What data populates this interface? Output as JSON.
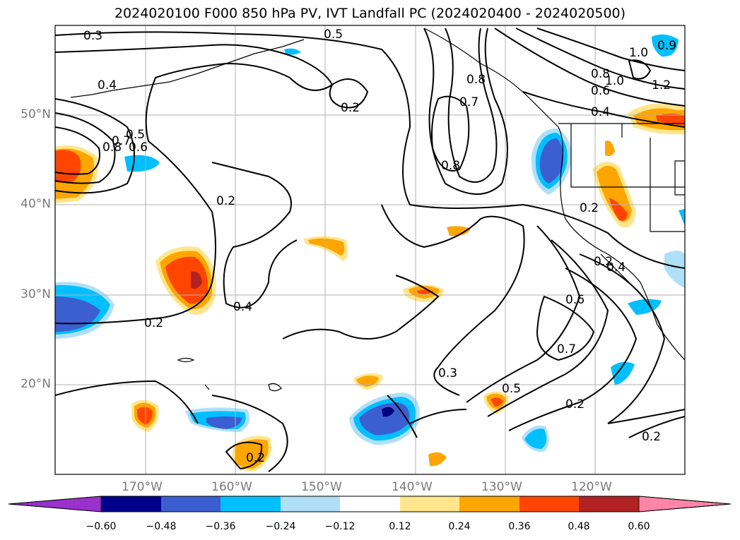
{
  "title": "2024020100 F000 850 hPa PV, IVT Landfall PC (2024020400 - 2024020500)",
  "map": {
    "lat_labels": [
      "50°N",
      "40°N",
      "30°N",
      "20°N"
    ],
    "lon_labels": [
      "170°W",
      "160°W",
      "150°W",
      "140°W",
      "130°W",
      "120°W"
    ],
    "contour_labels": [
      "0.3",
      "0.5",
      "0.4",
      "0.2",
      "0.8",
      "0.7",
      "0.8",
      "1.0",
      "0.9",
      "1.2",
      "1.0",
      "0.8",
      "0.6",
      "0.4",
      "0.8",
      "0.7",
      "0.5",
      "0.6",
      "0.2",
      "0.2",
      "0.2",
      "0.4",
      "0.2",
      "0.4",
      "0.6",
      "0.7",
      "0.3",
      "0.5",
      "0.2",
      "0.2",
      "0.2"
    ],
    "colors": {
      "dark_red": "#b22222",
      "red_orange": "#ff4500",
      "orange": "#ffa500",
      "yellow": "#ffe68c",
      "light_blue": "#b0e0f8",
      "deep_sky": "#00bfff",
      "royal_blue": "#3b5fd0",
      "navy": "#000080"
    }
  },
  "colorbar": {
    "ticks": [
      "−0.60",
      "−0.48",
      "−0.36",
      "−0.24",
      "−0.12",
      "0.12",
      "0.24",
      "0.36",
      "0.48",
      "0.60"
    ],
    "colors": [
      "#9932cc",
      "#00008b",
      "#3b5fd0",
      "#00bfff",
      "#b0e0f8",
      "#ffffff",
      "#ffe68c",
      "#ffa500",
      "#ff4500",
      "#b22222",
      "#ff85a8"
    ]
  }
}
